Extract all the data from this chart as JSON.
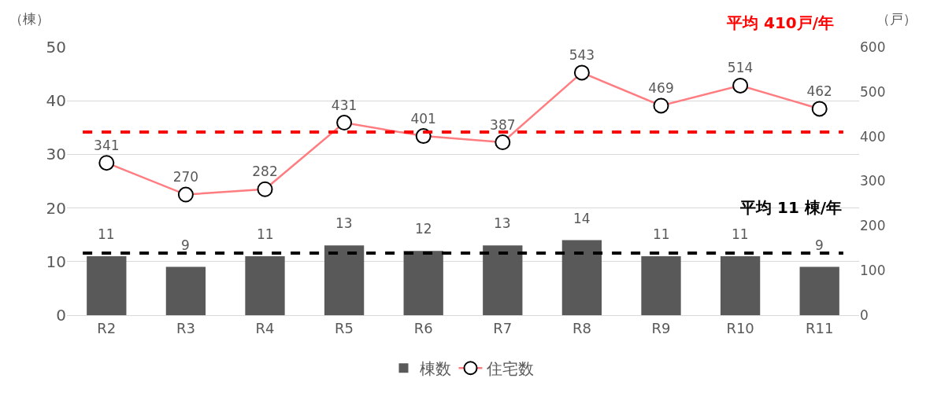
{
  "chart_data": {
    "type": "bar",
    "categories": [
      "R2",
      "R3",
      "R4",
      "R5",
      "R6",
      "R7",
      "R8",
      "R9",
      "R10",
      "R11"
    ],
    "series": [
      {
        "name": "棟数",
        "color": "#595959",
        "values": [
          11,
          9,
          11,
          13,
          12,
          13,
          14,
          11,
          11,
          9
        ]
      },
      {
        "name": "住宅数",
        "type": "line",
        "axis": "y2",
        "color": "#ff7c80",
        "marker": "circle",
        "values": [
          341,
          270,
          282,
          431,
          401,
          387,
          543,
          469,
          514,
          462
        ]
      }
    ],
    "ylabel": "（棟）",
    "y2label": "（戸）",
    "ylim": [
      0,
      50
    ],
    "yticks": [
      0,
      10,
      20,
      30,
      40,
      50
    ],
    "y2lim": [
      0,
      600
    ],
    "y2ticks": [
      0,
      100,
      200,
      300,
      400,
      500,
      600
    ],
    "ref_lines": [
      {
        "axis": "y2",
        "value": 410,
        "label": "平均 410戸/年",
        "color": "#ff0000",
        "line_style": "dashed"
      },
      {
        "axis": "y",
        "value": 11.6,
        "label": "平均 11 棟/年",
        "color": "#000000",
        "line_style": "dashed"
      }
    ],
    "data_labels": true,
    "grid": "y",
    "legend": "bottom"
  }
}
